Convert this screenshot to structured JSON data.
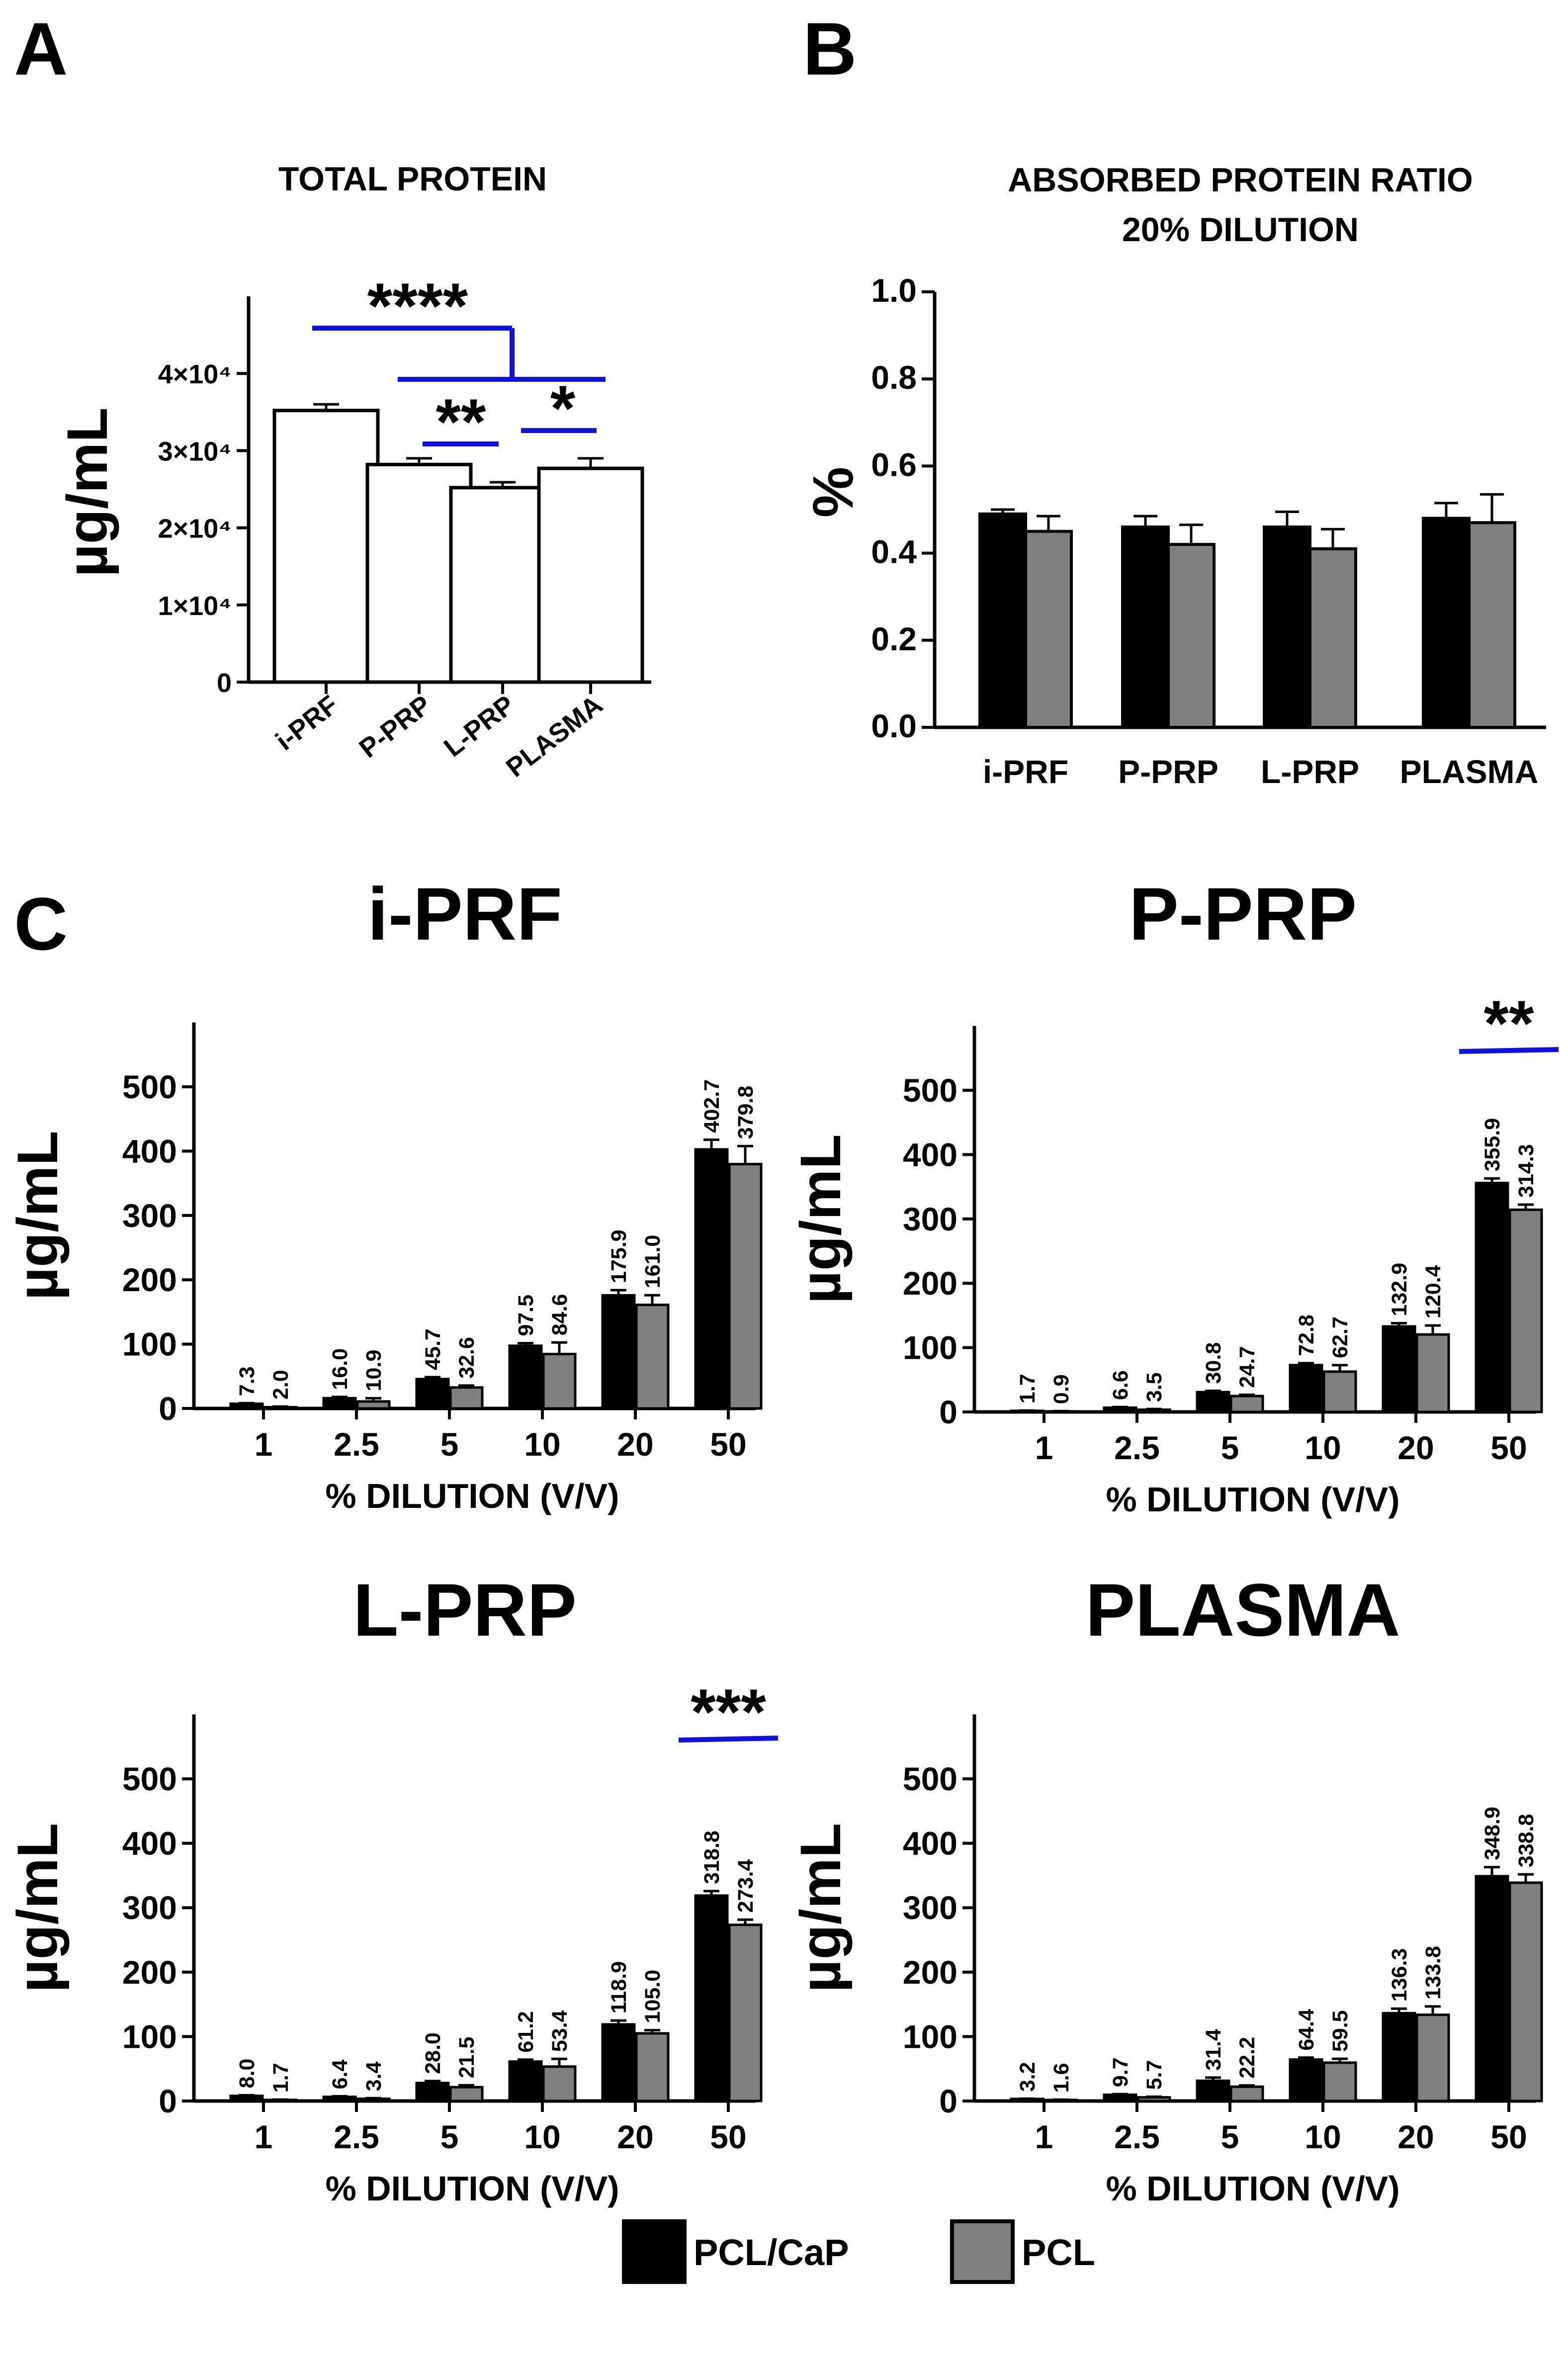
{
  "panels": {
    "a_letter": "A",
    "b_letter": "B",
    "c_letter": "C"
  },
  "legend": {
    "items": [
      {
        "label": "PCL/CaP",
        "color": "#000000"
      },
      {
        "label": "PCL",
        "color": "#808080"
      }
    ]
  },
  "colors": {
    "significance": "#1010e0",
    "pcl_cap": "#000000",
    "pcl": "#808080"
  },
  "chart_data": [
    {
      "id": "A",
      "type": "bar",
      "title": "TOTAL PROTEIN",
      "ylabel": "µg/mL",
      "ylim": [
        0,
        50000
      ],
      "yticks": [
        0,
        10000,
        20000,
        30000,
        40000
      ],
      "ytick_labels": [
        "0",
        "1×10⁴",
        "2×10⁴",
        "3×10⁴",
        "4×10⁴"
      ],
      "categories": [
        "i-PRF",
        "P-PRP",
        "L-PRP",
        "PLASMA"
      ],
      "values": [
        35200,
        28200,
        25200,
        27700
      ],
      "errors": [
        800,
        800,
        700,
        1300
      ],
      "significance": [
        {
          "label": "****",
          "from": "i-PRF",
          "to": [
            "P-PRP",
            "L-PRP",
            "PLASMA"
          ]
        },
        {
          "label": "**",
          "from": "P-PRP",
          "to": "L-PRP"
        },
        {
          "label": "*",
          "from": "L-PRP",
          "to": "PLASMA"
        }
      ]
    },
    {
      "id": "B",
      "type": "bar",
      "title": "ABSORBED PROTEIN RATIO",
      "subtitle": "20% DILUTION",
      "ylabel": "%",
      "ylim": [
        0,
        1.0
      ],
      "yticks": [
        0.0,
        0.2,
        0.4,
        0.6,
        0.8,
        1.0
      ],
      "ytick_labels": [
        "0.0",
        "0.2",
        "0.4",
        "0.6",
        "0.8",
        "1.0"
      ],
      "categories": [
        "i-PRF",
        "P-PRP",
        "L-PRP",
        "PLASMA"
      ],
      "series": [
        {
          "name": "PCL/CaP",
          "values": [
            0.49,
            0.46,
            0.46,
            0.48
          ],
          "errors": [
            0.01,
            0.025,
            0.035,
            0.035
          ]
        },
        {
          "name": "PCL",
          "values": [
            0.45,
            0.42,
            0.41,
            0.47
          ],
          "errors": [
            0.035,
            0.045,
            0.045,
            0.065
          ]
        }
      ]
    },
    {
      "id": "C1",
      "type": "bar",
      "title": "i-PRF",
      "ylabel": "µg/mL",
      "xlabel": "% DILUTION (V/V)",
      "ylim": [
        0,
        600
      ],
      "yticks": [
        0,
        100,
        200,
        300,
        400,
        500
      ],
      "ytick_labels": [
        "0",
        "100",
        "200",
        "300",
        "400",
        "500"
      ],
      "categories": [
        "1",
        "2.5",
        "5",
        "10",
        "20",
        "50"
      ],
      "series": [
        {
          "name": "PCL/CaP",
          "values": [
            7.3,
            16.0,
            45.7,
            97.5,
            175.9,
            402.7
          ],
          "labels": [
            "7.3",
            "16.0",
            "45.7",
            "97.5",
            "175.9",
            "402.7"
          ],
          "errors": [
            1,
            2,
            3,
            4,
            8,
            15
          ]
        },
        {
          "name": "PCL",
          "values": [
            2.0,
            10.9,
            32.6,
            84.6,
            161.0,
            379.8
          ],
          "labels": [
            "2.0",
            "10.9",
            "32.6",
            "84.6",
            "161.0",
            "379.8"
          ],
          "errors": [
            1,
            5,
            3,
            18,
            15,
            28
          ]
        }
      ],
      "significance": []
    },
    {
      "id": "C2",
      "type": "bar",
      "title": "P-PRP",
      "ylabel": "µg/mL",
      "xlabel": "% DILUTION (V/V)",
      "ylim": [
        0,
        600
      ],
      "yticks": [
        0,
        100,
        200,
        300,
        400,
        500
      ],
      "ytick_labels": [
        "0",
        "100",
        "200",
        "300",
        "400",
        "500"
      ],
      "categories": [
        "1",
        "2.5",
        "5",
        "10",
        "20",
        "50"
      ],
      "series": [
        {
          "name": "PCL/CaP",
          "values": [
            1.7,
            6.6,
            30.8,
            72.8,
            132.9,
            355.9
          ],
          "labels": [
            "1.7",
            "6.6",
            "30.8",
            "72.8",
            "132.9",
            "355.9"
          ],
          "errors": [
            0.5,
            1,
            2,
            3,
            5,
            7
          ]
        },
        {
          "name": "PCL",
          "values": [
            0.9,
            3.5,
            24.7,
            62.7,
            120.4,
            314.3
          ],
          "labels": [
            "0.9",
            "3.5",
            "24.7",
            "62.7",
            "120.4",
            "314.3"
          ],
          "errors": [
            0.5,
            1,
            2,
            10,
            14,
            8
          ]
        }
      ],
      "significance": [
        {
          "label": "**",
          "category": "50"
        }
      ]
    },
    {
      "id": "C3",
      "type": "bar",
      "title": "L-PRP",
      "ylabel": "µg/mL",
      "xlabel": "% DILUTION (V/V)",
      "ylim": [
        0,
        600
      ],
      "yticks": [
        0,
        100,
        200,
        300,
        400,
        500
      ],
      "ytick_labels": [
        "0",
        "100",
        "200",
        "300",
        "400",
        "500"
      ],
      "categories": [
        "1",
        "2.5",
        "5",
        "10",
        "20",
        "50"
      ],
      "series": [
        {
          "name": "PCL/CaP",
          "values": [
            8.0,
            6.4,
            28.0,
            61.2,
            118.9,
            318.8
          ],
          "labels": [
            "8.0",
            "6.4",
            "28.0",
            "61.2",
            "118.9",
            "318.8"
          ],
          "errors": [
            1,
            1,
            3,
            3,
            6,
            7
          ]
        },
        {
          "name": "PCL",
          "values": [
            1.7,
            3.4,
            21.5,
            53.4,
            105.0,
            273.4
          ],
          "labels": [
            "1.7",
            "3.4",
            "21.5",
            "53.4",
            "105.0",
            "273.4"
          ],
          "errors": [
            0.5,
            1,
            3,
            12,
            5,
            8
          ]
        }
      ],
      "significance": [
        {
          "label": "***",
          "category": "50"
        }
      ]
    },
    {
      "id": "C4",
      "type": "bar",
      "title": "PLASMA",
      "ylabel": "µg/mL",
      "xlabel": "% DILUTION (V/V)",
      "ylim": [
        0,
        600
      ],
      "yticks": [
        0,
        100,
        200,
        300,
        400,
        500
      ],
      "ytick_labels": [
        "0",
        "100",
        "200",
        "300",
        "400",
        "500"
      ],
      "categories": [
        "1",
        "2.5",
        "5",
        "10",
        "20",
        "50"
      ],
      "series": [
        {
          "name": "PCL/CaP",
          "values": [
            3.2,
            9.7,
            31.4,
            64.4,
            136.3,
            348.9
          ],
          "labels": [
            "3.2",
            "9.7",
            "31.4",
            "64.4",
            "136.3",
            "348.9"
          ],
          "errors": [
            0.5,
            1,
            5,
            3,
            7,
            14
          ]
        },
        {
          "name": "PCL",
          "values": [
            1.6,
            5.7,
            22.2,
            59.5,
            133.8,
            338.8
          ],
          "labels": [
            "1.6",
            "5.7",
            "22.2",
            "59.5",
            "133.8",
            "338.8"
          ],
          "errors": [
            0.5,
            1,
            2,
            6,
            13,
            13
          ]
        }
      ],
      "significance": []
    }
  ]
}
